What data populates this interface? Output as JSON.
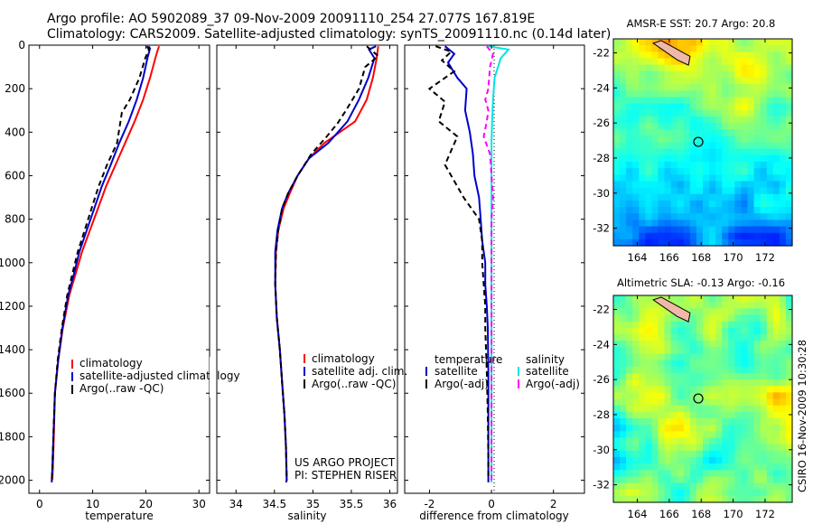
{
  "header": {
    "line1": "Argo profile: AO 5902089_37 09-Nov-2009 20091110_254 27.077S 167.819E",
    "line2": "Climatology: CARS2009. Satellite-adjusted climatology: synTS_20091110.nc (0.14d later)"
  },
  "colors": {
    "clim": "#ff0000",
    "sat": "#0000cc",
    "argo": "#000000",
    "sat_diff_s": "#00e5e5",
    "argo_adj_s": "#ff00ff"
  },
  "chart_data": [
    {
      "type": "line",
      "id": "temperature",
      "xlabel": "temperature",
      "ylabel": "",
      "xlim": [
        -2,
        32
      ],
      "ylim": [
        2060,
        0
      ],
      "xticks": [
        0,
        10,
        20,
        30
      ],
      "yticks": [
        0,
        200,
        400,
        600,
        800,
        1000,
        1200,
        1400,
        1600,
        1800,
        2000
      ],
      "legend": [
        "climatology",
        "satellite-adjusted climatology",
        "Argo(..raw -QC)"
      ],
      "series": [
        {
          "name": "climatology",
          "color": "#ff0000",
          "dash": "",
          "x": [
            22.5,
            22.2,
            21.8,
            20.8,
            19.5,
            17.9,
            16.1,
            14.3,
            12.5,
            11.0,
            9.5,
            8.0,
            6.8,
            5.6,
            4.4,
            3.5,
            2.9,
            2.7,
            2.5,
            2.4
          ],
          "y": [
            5,
            25,
            60,
            150,
            250,
            350,
            450,
            550,
            650,
            750,
            850,
            950,
            1050,
            1150,
            1300,
            1450,
            1600,
            1800,
            1950,
            2000
          ]
        },
        {
          "name": "satellite-adjusted climatology",
          "color": "#0000cc",
          "dash": "",
          "x": [
            20.5,
            20.8,
            20.3,
            19.5,
            18.3,
            16.8,
            15.0,
            13.4,
            11.7,
            10.3,
            8.9,
            7.5,
            6.5,
            5.4,
            4.3,
            3.5,
            2.9,
            2.6,
            2.4,
            2.3,
            2.3
          ],
          "y": [
            5,
            15,
            60,
            150,
            250,
            350,
            450,
            550,
            650,
            750,
            850,
            950,
            1050,
            1150,
            1300,
            1450,
            1600,
            1800,
            1950,
            2000,
            2010
          ]
        },
        {
          "name": "Argo(..raw -QC)",
          "color": "#000000",
          "dash": "6,4",
          "x": [
            20.2,
            20.6,
            19.9,
            18.8,
            17.0,
            15.5,
            14.6,
            12.7,
            11.1,
            9.8,
            8.5,
            7.2,
            6.2,
            5.2,
            4.2,
            3.4,
            2.9,
            2.6,
            2.4,
            2.3
          ],
          "y": [
            5,
            20,
            60,
            150,
            250,
            310,
            450,
            550,
            650,
            750,
            850,
            950,
            1050,
            1150,
            1300,
            1450,
            1600,
            1800,
            1950,
            2000
          ]
        }
      ]
    },
    {
      "type": "line",
      "id": "salinity",
      "xlabel": "salinity",
      "ylabel": "",
      "xlim": [
        33.75,
        36.1
      ],
      "ylim": [
        2060,
        0
      ],
      "xticks": [
        34,
        34.5,
        35,
        35.5,
        36
      ],
      "xticklabels": [
        "34",
        "34.5",
        "35",
        "35.5",
        "36"
      ],
      "legend": [
        "climatology",
        "satellite adj. clim.",
        "Argo(..raw -QC)"
      ],
      "series": [
        {
          "name": "climatology",
          "color": "#ff0000",
          "dash": "",
          "x": [
            35.85,
            35.83,
            35.78,
            35.7,
            35.55,
            35.35,
            35.15,
            34.95,
            34.8,
            34.7,
            34.62,
            34.55,
            34.52,
            34.51,
            34.53,
            34.57,
            34.6,
            34.63,
            34.65,
            34.66
          ],
          "y": [
            5,
            60,
            150,
            250,
            350,
            400,
            450,
            520,
            600,
            680,
            750,
            850,
            950,
            1100,
            1250,
            1400,
            1550,
            1700,
            1850,
            2000
          ]
        },
        {
          "name": "satellite adj. clim.",
          "color": "#0000cc",
          "dash": "",
          "x": [
            35.82,
            35.73,
            35.8,
            35.72,
            35.6,
            35.45,
            35.2,
            34.95,
            34.8,
            34.68,
            34.6,
            34.54,
            34.51,
            34.51,
            34.53,
            34.57,
            34.6,
            34.63,
            34.65,
            34.66,
            34.65
          ],
          "y": [
            5,
            20,
            60,
            150,
            250,
            350,
            450,
            520,
            600,
            680,
            750,
            850,
            950,
            1100,
            1250,
            1400,
            1550,
            1700,
            1850,
            2000,
            2010
          ]
        },
        {
          "name": "Argo(..raw -QC)",
          "color": "#000000",
          "dash": "6,4",
          "x": [
            35.7,
            35.85,
            35.68,
            35.6,
            35.43,
            35.32,
            35.18,
            34.98,
            34.8,
            34.68,
            34.6,
            34.55,
            34.52,
            34.51,
            34.53,
            34.57,
            34.6,
            34.63,
            34.65,
            34.66
          ],
          "y": [
            5,
            50,
            100,
            200,
            300,
            360,
            420,
            500,
            600,
            680,
            750,
            850,
            950,
            1100,
            1250,
            1400,
            1550,
            1700,
            1850,
            2000
          ]
        }
      ]
    },
    {
      "type": "line",
      "id": "difference",
      "xlabel": "difference from climatology",
      "ylabel": "",
      "xlim": [
        -2.8,
        3.0
      ],
      "ylim": [
        2060,
        0
      ],
      "xticks": [
        -2,
        0,
        2
      ],
      "legend_t": {
        "title": "temperature",
        "sat": "satellite",
        "argo": "Argo(-adj)"
      },
      "legend_s": {
        "title": "salinity",
        "sat": "satellite",
        "argo": "Argo(-adj)"
      },
      "series": [
        {
          "name": "temperature satellite",
          "color": "#0000cc",
          "dash": "",
          "x": [
            -1.5,
            -1.2,
            -1.4,
            -1.1,
            -0.8,
            -0.85,
            -0.7,
            -0.6,
            -0.55,
            -0.4,
            -0.35,
            -0.3,
            -0.2,
            -0.2,
            -0.15,
            -0.12,
            -0.1,
            -0.1,
            -0.1,
            -0.1
          ],
          "y": [
            5,
            40,
            80,
            150,
            200,
            300,
            400,
            500,
            600,
            700,
            800,
            900,
            1000,
            1100,
            1200,
            1300,
            1500,
            1700,
            1900,
            2010
          ]
        },
        {
          "name": "temperature Argo(-adj)",
          "color": "#000000",
          "dash": "6,4",
          "x": [
            -1.8,
            -1.3,
            -1.6,
            -1.2,
            -2.0,
            -1.5,
            -1.7,
            -1.1,
            -1.5,
            -0.9,
            -0.4,
            -0.3,
            -0.3,
            -0.25,
            -0.2,
            -0.2,
            -0.15,
            -0.12,
            -0.1,
            -0.1
          ],
          "y": [
            5,
            30,
            70,
            120,
            200,
            260,
            350,
            420,
            550,
            700,
            800,
            900,
            1000,
            1100,
            1200,
            1300,
            1500,
            1700,
            1900,
            2000
          ]
        },
        {
          "name": "salinity satellite",
          "color": "#00e5e5",
          "dash": "",
          "x": [
            -0.1,
            0.55,
            0.3,
            0.1,
            0.05,
            0.02,
            0.0,
            0.0,
            0.0,
            0.0,
            0.0,
            0.0,
            0.0,
            0.0,
            0.0,
            0.0,
            0.0,
            0.0,
            0.0,
            0.0
          ],
          "y": [
            5,
            20,
            60,
            150,
            250,
            350,
            450,
            550,
            650,
            750,
            850,
            950,
            1050,
            1150,
            1300,
            1450,
            1600,
            1800,
            1950,
            2010
          ]
        },
        {
          "name": "salinity Argo(-adj)",
          "color": "#ff00ff",
          "dash": "6,4",
          "x": [
            -0.15,
            0.05,
            -0.05,
            -0.1,
            -0.2,
            -0.1,
            -0.15,
            -0.25,
            -0.05,
            0.0,
            0.05,
            0.0,
            0.0,
            0.0,
            0.0,
            0.0,
            0.0,
            0.0,
            0.0,
            0.0
          ],
          "y": [
            5,
            40,
            100,
            200,
            250,
            300,
            350,
            420,
            500,
            600,
            700,
            800,
            900,
            1000,
            1150,
            1300,
            1500,
            1700,
            1900,
            2000
          ]
        }
      ]
    },
    {
      "type": "heatmap",
      "id": "sst_map",
      "title": "AMSR-E SST: 20.7 Argo: 20.8",
      "xticks": [
        164,
        166,
        168,
        170,
        172
      ],
      "yticks": [
        -22,
        -24,
        -26,
        -28,
        -30,
        -32
      ],
      "xlim": [
        162.5,
        173.7
      ],
      "ylim": [
        -33,
        -21.2
      ],
      "marker": {
        "lon": 167.819,
        "lat": -27.077
      }
    },
    {
      "type": "heatmap",
      "id": "sla_map",
      "title": "Altimetric SLA: -0.13 Argo: -0.16",
      "xticks": [
        164,
        166,
        168,
        170,
        172
      ],
      "yticks": [
        -22,
        -24,
        -26,
        -28,
        -30,
        -32
      ],
      "xlim": [
        162.5,
        173.7
      ],
      "ylim": [
        -33,
        -21.2
      ],
      "marker": {
        "lon": 167.819,
        "lat": -27.077
      }
    }
  ],
  "project": {
    "line1": "US ARGO PROJECT",
    "line2": "PI: STEPHEN RISER"
  },
  "stamp": "CSIRO 16-Nov-2009 10:30:28"
}
